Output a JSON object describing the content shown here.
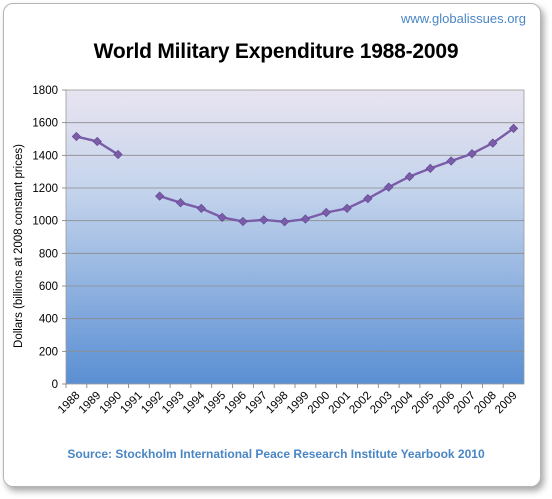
{
  "watermark": "www.globalissues.org",
  "source": "Source: Stockholm International Peace Research Institute Yearbook 2010",
  "chart_data": {
    "type": "line",
    "title": "World Military Expenditure 1988-2009",
    "xlabel": "",
    "ylabel": "Dollars (billions at 2008 constant prices)",
    "ylim": [
      0,
      1800
    ],
    "yticks": [
      0,
      200,
      400,
      600,
      800,
      1000,
      1200,
      1400,
      1600,
      1800
    ],
    "grid": true,
    "categories": [
      "1988",
      "1989",
      "1990",
      "1991",
      "1992",
      "1993",
      "1994",
      "1995",
      "1996",
      "1997",
      "1998",
      "1999",
      "2000",
      "2001",
      "2002",
      "2003",
      "2004",
      "2005",
      "2006",
      "2007",
      "2008",
      "2009"
    ],
    "series": [
      {
        "values": [
          1515,
          1485,
          1405,
          null,
          1150,
          1110,
          1075,
          1020,
          995,
          1005,
          993,
          1010,
          1050,
          1075,
          1135,
          1205,
          1270,
          1320,
          1365,
          1410,
          1475,
          1565
        ]
      }
    ],
    "colors": {
      "line": "#7b5ca8",
      "marker": "#7b5ca8",
      "plot_top": "#e8e4f0",
      "plot_bottom": "#5a8fd3",
      "grid": "#8c8c8c"
    }
  }
}
